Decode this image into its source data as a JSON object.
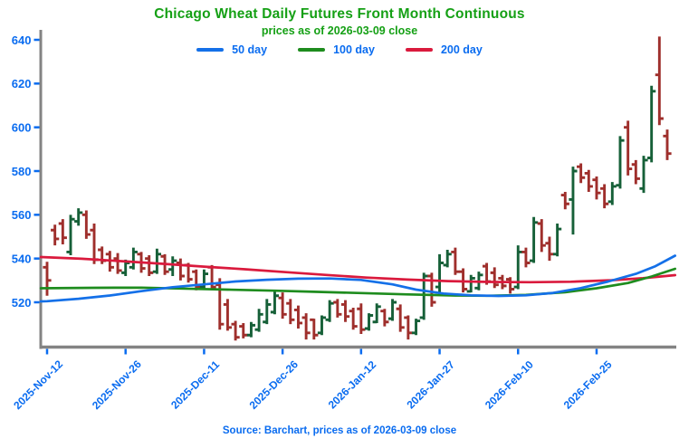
{
  "header": {
    "title": "Chicago Wheat Daily Futures Front Month Continuous",
    "subtitle": "prices as of 2026-03-09 close"
  },
  "legend": [
    {
      "label": "50 day",
      "color": "#1470e8"
    },
    {
      "label": "100 day",
      "color": "#1e8c1e"
    },
    {
      "label": "200 day",
      "color": "#da1a3d"
    }
  ],
  "footer": {
    "source_note": "Source: Barchart, prices as of 2026-03-09 close"
  },
  "colors": {
    "title_green": "#15a015",
    "axis_text_blue": "#0a6cf0",
    "axis_gray": "#838383",
    "up_bar": "#166038",
    "down_bar": "#9f2f2c",
    "background": "#ffffff"
  },
  "chart_data": {
    "type": "ohlc",
    "title": "Chicago Wheat Daily Futures Front Month Continuous",
    "subtitle": "prices as of 2026-03-09 close",
    "ylim": [
      500,
      645
    ],
    "y_ticks": [
      520,
      540,
      560,
      580,
      600,
      620,
      640
    ],
    "x_ticks": [
      {
        "index": 0,
        "label": "2025-Nov-12"
      },
      {
        "index": 10,
        "label": "2025-Nov-26"
      },
      {
        "index": 20,
        "label": "2025-Dec-11"
      },
      {
        "index": 30,
        "label": "2025-Dec-26"
      },
      {
        "index": 40,
        "label": "2026-Jan-12"
      },
      {
        "index": 50,
        "label": "2026-Jan-27"
      },
      {
        "index": 60,
        "label": "2026-Feb-10"
      },
      {
        "index": 70,
        "label": "2026-Feb-25"
      }
    ],
    "bars_format": [
      "open",
      "high",
      "low",
      "close"
    ],
    "bars": [
      [
        536,
        538.5,
        523,
        530
      ],
      [
        553,
        555.5,
        546,
        549
      ],
      [
        556,
        558,
        546.5,
        549.5
      ],
      [
        543,
        560,
        541.5,
        558
      ],
      [
        557,
        563,
        555,
        561
      ],
      [
        560,
        562,
        549,
        551
      ],
      [
        553,
        556,
        537.5,
        539.5
      ],
      [
        544,
        545.5,
        537.5,
        539
      ],
      [
        542,
        543.5,
        534,
        536
      ],
      [
        540,
        542.5,
        533,
        534.5
      ],
      [
        533.5,
        539.5,
        532,
        538
      ],
      [
        536,
        545,
        535,
        543
      ],
      [
        542,
        543,
        533.5,
        535.5
      ],
      [
        540,
        541.5,
        532,
        533.5
      ],
      [
        534,
        544.5,
        533,
        542
      ],
      [
        541,
        542,
        532.5,
        534
      ],
      [
        535,
        541,
        532,
        539
      ],
      [
        538,
        540,
        530,
        532
      ],
      [
        537,
        538,
        529,
        530.5
      ],
      [
        534,
        535,
        525.5,
        527
      ],
      [
        527,
        535,
        526,
        533
      ],
      [
        536,
        537,
        525.5,
        527
      ],
      [
        528,
        531,
        507.5,
        510
      ],
      [
        519,
        521.5,
        507,
        508.5
      ],
      [
        510,
        511.5,
        502.5,
        504
      ],
      [
        509,
        510.5,
        503.5,
        505
      ],
      [
        505,
        511,
        504,
        509.5
      ],
      [
        507.5,
        517,
        506.5,
        514.5
      ],
      [
        511,
        521.5,
        510,
        519
      ],
      [
        515.5,
        525,
        514.5,
        523
      ],
      [
        522,
        524.5,
        512.5,
        514.5
      ],
      [
        519.5,
        521.5,
        510,
        512
      ],
      [
        516.5,
        518.5,
        508,
        510.5
      ],
      [
        513,
        515,
        503,
        506
      ],
      [
        512,
        512.5,
        503,
        505
      ],
      [
        506,
        514,
        505,
        513
      ],
      [
        512,
        521,
        511,
        519.5
      ],
      [
        520,
        521.5,
        513,
        514.5
      ],
      [
        519,
        521,
        511,
        513.5
      ],
      [
        516,
        517.5,
        507.5,
        509
      ],
      [
        517,
        519.5,
        505.5,
        507.5
      ],
      [
        508,
        515,
        507,
        514
      ],
      [
        511,
        519.5,
        510.5,
        518
      ],
      [
        516,
        517,
        509,
        511
      ],
      [
        512.5,
        521.5,
        511.5,
        520
      ],
      [
        517,
        519,
        506.5,
        508.5
      ],
      [
        513,
        514,
        503,
        506
      ],
      [
        506,
        512.5,
        505,
        511.5
      ],
      [
        513,
        533.5,
        512,
        532
      ],
      [
        532,
        533.5,
        518,
        520
      ],
      [
        527,
        542,
        523,
        538
      ],
      [
        537,
        544,
        536,
        542
      ],
      [
        543,
        545,
        532.5,
        534
      ],
      [
        534,
        535.5,
        524.5,
        526
      ],
      [
        525,
        532.5,
        524.5,
        531
      ],
      [
        526.5,
        534,
        525.5,
        532.5
      ],
      [
        536.5,
        538,
        528,
        529.5
      ],
      [
        533.5,
        536,
        526.5,
        528
      ],
      [
        531,
        532.5,
        526,
        527.5
      ],
      [
        530.5,
        531.5,
        524,
        526
      ],
      [
        527,
        546,
        526,
        543
      ],
      [
        543,
        545,
        536,
        538
      ],
      [
        539,
        559,
        538,
        556.5
      ],
      [
        556,
        558,
        543,
        546
      ],
      [
        547,
        550,
        539,
        542
      ],
      [
        542,
        556,
        541,
        553.5
      ],
      [
        569,
        570.5,
        562.5,
        565
      ],
      [
        567,
        582,
        551,
        580
      ],
      [
        582,
        583.5,
        574.5,
        577
      ],
      [
        579,
        580.5,
        570.5,
        573
      ],
      [
        576,
        577.5,
        567,
        570
      ],
      [
        572,
        574,
        563,
        565
      ],
      [
        566,
        575,
        564.5,
        573
      ],
      [
        573.5,
        596,
        572,
        594
      ],
      [
        600,
        603,
        578,
        581
      ],
      [
        583,
        585,
        574,
        576.5
      ],
      [
        572,
        587,
        570,
        585
      ],
      [
        586,
        619,
        584,
        616.5
      ],
      [
        624,
        641.5,
        601,
        604
      ],
      [
        596,
        599,
        585,
        588
      ]
    ],
    "series": [
      {
        "name": "50 day",
        "color": "#1470e8",
        "points": [
          [
            -0.8,
            520.4
          ],
          [
            0,
            520.5
          ],
          [
            4,
            521.6
          ],
          [
            8,
            523.1
          ],
          [
            12,
            525.1
          ],
          [
            16,
            526.9
          ],
          [
            20,
            528.2
          ],
          [
            24,
            529.5
          ],
          [
            28,
            530.3
          ],
          [
            32,
            530.8
          ],
          [
            36,
            530.9
          ],
          [
            40,
            530.2
          ],
          [
            44,
            528.2
          ],
          [
            47,
            525.8
          ],
          [
            50.5,
            524
          ],
          [
            54,
            523.2
          ],
          [
            57.5,
            522.9
          ],
          [
            61,
            523.2
          ],
          [
            64.5,
            524.3
          ],
          [
            68,
            526.5
          ],
          [
            71.5,
            529.5
          ],
          [
            75,
            533
          ],
          [
            77.5,
            536.5
          ],
          [
            80,
            541.3
          ]
        ]
      },
      {
        "name": "100 day",
        "color": "#1e8c1e",
        "points": [
          [
            -0.8,
            526.4
          ],
          [
            6,
            526.6
          ],
          [
            12,
            526.7
          ],
          [
            17,
            526.3
          ],
          [
            23,
            525.8
          ],
          [
            29,
            525.3
          ],
          [
            34,
            524.8
          ],
          [
            40,
            524.2
          ],
          [
            46,
            523.6
          ],
          [
            52,
            523.1
          ],
          [
            56,
            523
          ],
          [
            61,
            523.4
          ],
          [
            66,
            524.6
          ],
          [
            70,
            526.4
          ],
          [
            74,
            528.8
          ],
          [
            77,
            531.8
          ],
          [
            80,
            535.3
          ]
        ]
      },
      {
        "name": "200 day",
        "color": "#da1a3d",
        "points": [
          [
            -0.8,
            540.7
          ],
          [
            4.4,
            539.9
          ],
          [
            9.6,
            538.8
          ],
          [
            14.8,
            537.6
          ],
          [
            20,
            536.3
          ],
          [
            25.2,
            535.1
          ],
          [
            30.4,
            533.8
          ],
          [
            35.6,
            532.5
          ],
          [
            40.7,
            531.3
          ],
          [
            45.9,
            530.4
          ],
          [
            51.1,
            529.7
          ],
          [
            56.3,
            529.3
          ],
          [
            61.5,
            529.2
          ],
          [
            66.7,
            529.4
          ],
          [
            71.9,
            530.1
          ],
          [
            75.9,
            531
          ],
          [
            80,
            532.4
          ]
        ]
      }
    ],
    "legend_position": "top",
    "grid": false
  }
}
